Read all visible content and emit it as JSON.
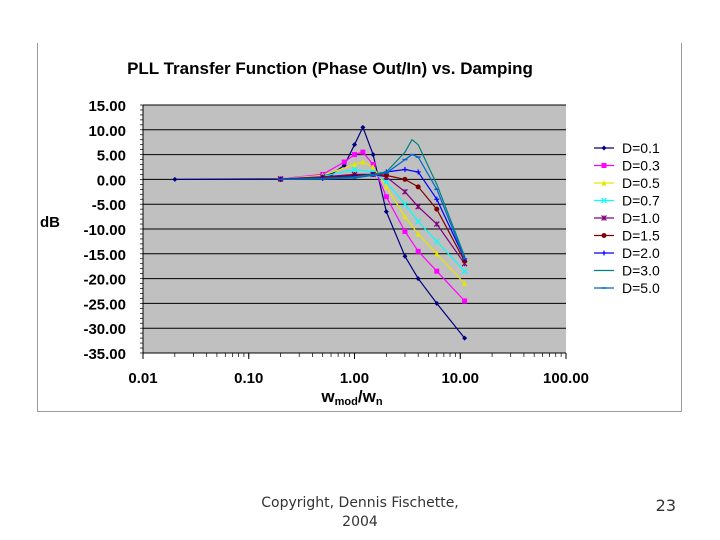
{
  "footer": {
    "copyright_line1": "Copyright, Dennis Fischette,",
    "copyright_line2": "2004",
    "slide_number": "23"
  },
  "chart_data": {
    "type": "line",
    "title": "PLL Transfer Function (Phase Out/In) vs. Damping",
    "ylabel": "dB",
    "xlabel_main": "w",
    "xlabel_sub1": "mod",
    "xlabel_slash": "/w",
    "xlabel_sub2": "n",
    "xscale": "log",
    "xlim": [
      0.01,
      100
    ],
    "ylim": [
      -35,
      15
    ],
    "x_ticks": [
      0.01,
      0.1,
      1,
      10,
      100
    ],
    "x_tick_labels": [
      "0.01",
      "0.10",
      "1.00",
      "10.00",
      "100.00"
    ],
    "y_ticks": [
      15,
      10,
      5,
      0,
      -5,
      -10,
      -15,
      -20,
      -25,
      -30,
      -35
    ],
    "y_tick_labels": [
      "15.00",
      "10.00",
      "5.00",
      "0.00",
      "-5.00",
      "-10.00",
      "-15.00",
      "-20.00",
      "-25.00",
      "-30.00",
      "-35.00"
    ],
    "grid": true,
    "plot_background": "#c0c0c0",
    "legend_position": "right",
    "series": [
      {
        "name": "D=0.1",
        "color": "#00007f",
        "marker": "diamond",
        "x": [
          0.02,
          0.2,
          0.4,
          0.6,
          0.8,
          1.0,
          1.2,
          1.5,
          2.0,
          3.0,
          4.0,
          6.0,
          11.0
        ],
        "y": [
          0,
          0.1,
          0.4,
          1.0,
          2.8,
          7.0,
          10.5,
          5.0,
          -6.5,
          -15.5,
          -20,
          -25,
          -32
        ]
      },
      {
        "name": "D=0.3",
        "color": "#ff00ff",
        "marker": "square",
        "x": [
          0.2,
          0.5,
          0.8,
          1.0,
          1.2,
          1.5,
          2.0,
          3.0,
          4.0,
          6.0,
          11.0
        ],
        "y": [
          0.1,
          1.0,
          3.5,
          5.0,
          5.5,
          3.0,
          -3.5,
          -10.5,
          -14.5,
          -18.5,
          -24.5
        ]
      },
      {
        "name": "D=0.5",
        "color": "#e6e600",
        "marker": "triangle",
        "x": [
          0.2,
          0.5,
          1.0,
          1.2,
          1.5,
          2.0,
          3.0,
          4.0,
          6.0,
          11.0
        ],
        "y": [
          0.1,
          0.8,
          3.0,
          3.5,
          2.5,
          -1.5,
          -7.5,
          -11.0,
          -15.0,
          -21.0
        ]
      },
      {
        "name": "D=0.7",
        "color": "#00ffff",
        "marker": "x",
        "x": [
          0.2,
          0.5,
          1.0,
          1.5,
          2.0,
          3.0,
          4.0,
          6.0,
          11.0
        ],
        "y": [
          0.1,
          0.6,
          2.0,
          1.5,
          -0.5,
          -5.0,
          -8.5,
          -12.5,
          -18.5
        ]
      },
      {
        "name": "D=1.0",
        "color": "#800080",
        "marker": "asterisk",
        "x": [
          0.2,
          0.5,
          1.0,
          1.5,
          2.0,
          3.0,
          4.0,
          6.0,
          11.0
        ],
        "y": [
          0.1,
          0.5,
          1.0,
          1.0,
          0.5,
          -2.5,
          -5.5,
          -9.0,
          -17.0
        ]
      },
      {
        "name": "D=1.5",
        "color": "#800000",
        "marker": "circle",
        "x": [
          0.2,
          0.5,
          1.0,
          1.5,
          2.0,
          3.0,
          4.0,
          6.0,
          11.0
        ],
        "y": [
          0,
          0.3,
          0.8,
          1.0,
          0.8,
          0,
          -1.5,
          -6.0,
          -16.5
        ]
      },
      {
        "name": "D=2.0",
        "color": "#0000ff",
        "marker": "plus",
        "x": [
          0.2,
          0.5,
          1.0,
          1.5,
          2.0,
          3.0,
          4.0,
          6.0,
          11.0
        ],
        "y": [
          0,
          0.2,
          0.6,
          1.0,
          1.5,
          2.0,
          1.5,
          -4.0,
          -16.0
        ]
      },
      {
        "name": "D=3.0",
        "color": "#008080",
        "marker": "none",
        "x": [
          0.2,
          0.5,
          1.0,
          1.5,
          2.0,
          3.0,
          3.5,
          4.0,
          6.0,
          11.0
        ],
        "y": [
          0,
          0.2,
          0.5,
          1.0,
          1.5,
          5.5,
          8.0,
          7.0,
          -1.0,
          -15.5
        ]
      },
      {
        "name": "D=5.0",
        "color": "#0066cc",
        "marker": "dash",
        "x": [
          0.2,
          0.5,
          1.0,
          1.5,
          2.0,
          3.0,
          3.5,
          4.0,
          6.0,
          11.0
        ],
        "y": [
          0,
          0.1,
          0.3,
          0.8,
          1.3,
          4.0,
          5.0,
          4.5,
          -2.0,
          -16.0
        ]
      }
    ]
  }
}
